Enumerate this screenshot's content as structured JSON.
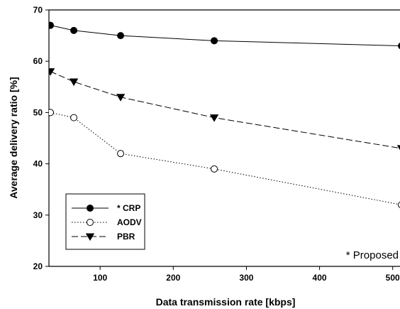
{
  "chart_data": {
    "type": "line",
    "xlabel": "Data transmission rate [kbps]",
    "ylabel": "Average delivery ratio [%]",
    "xlim": [
      30,
      510
    ],
    "ylim": [
      20,
      70
    ],
    "xticks": [
      100,
      200,
      300,
      400,
      500
    ],
    "xtick_labels": [
      "100",
      "200",
      "300",
      "400",
      "500"
    ],
    "yticks": [
      20,
      30,
      40,
      50,
      60,
      70
    ],
    "ytick_labels": [
      "20",
      "30",
      "40",
      "50",
      "60",
      "70"
    ],
    "grid": false,
    "legend_position": "bottom-left",
    "annotation": "* Proposed",
    "series": [
      {
        "name": "* CRP",
        "marker": "filled-circle",
        "line_style": "solid",
        "x": [
          32,
          64,
          128,
          256,
          512
        ],
        "y": [
          67,
          66,
          65,
          64,
          63
        ]
      },
      {
        "name": "AODV",
        "marker": "open-circle",
        "line_style": "dotted",
        "x": [
          32,
          64,
          128,
          256,
          512
        ],
        "y": [
          50,
          49,
          42,
          39,
          32
        ]
      },
      {
        "name": "PBR",
        "marker": "filled-triangle-down",
        "line_style": "dashed",
        "x": [
          32,
          64,
          128,
          256,
          512
        ],
        "y": [
          58,
          56,
          53,
          49,
          43
        ]
      }
    ]
  }
}
